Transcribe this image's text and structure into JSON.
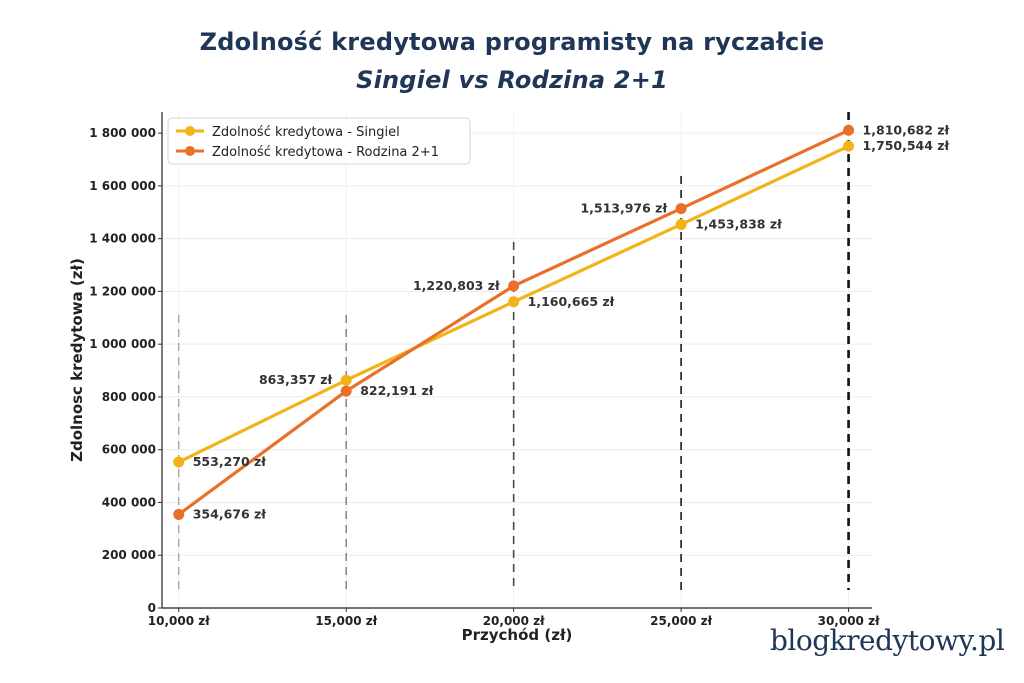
{
  "title_line1": "Zdolność kredytowa programisty na ryczałcie",
  "title_line2": "Singiel vs Rodzina 2+1",
  "brand": "blogkredytowy.pl",
  "colors": {
    "singiel": "#f2b318",
    "rodzina": "#e8702a",
    "title": "#1f3657"
  },
  "chart_data": {
    "type": "line",
    "xlabel": "Przychód (zł)",
    "ylabel": "Zdolnosc kredytowa (zł)",
    "x": [
      10000,
      15000,
      20000,
      25000,
      30000
    ],
    "x_tick_labels": [
      "10,000 zł",
      "15,000 zł",
      "20,000 zł",
      "25,000 zł",
      "30,000 zł"
    ],
    "ylim": [
      0,
      1880000
    ],
    "y_ticks": [
      0,
      200000,
      400000,
      600000,
      800000,
      1000000,
      1200000,
      1400000,
      1600000,
      1800000
    ],
    "y_tick_labels": [
      "0",
      "200 000",
      "400 000",
      "600 000",
      "800 000",
      "1 000 000",
      "1 200 000",
      "1 400 000",
      "1 600 000",
      "1 800 000"
    ],
    "grid": true,
    "legend_position": "top-left",
    "series": [
      {
        "name": "Zdolność kredytowa - Singiel",
        "values": [
          553270,
          863357,
          1160665,
          1453838,
          1750544
        ],
        "labels": [
          "553,270 zł",
          "863,357 zł",
          "1,160,665 zł",
          "1,453,838 zł",
          "1,750,544 zł"
        ]
      },
      {
        "name": "Zdolność kredytowa - Rodzina 2+1",
        "values": [
          354676,
          822191,
          1220803,
          1513976,
          1810682
        ],
        "labels": [
          "354,676 zł",
          "822,191 zł",
          "1,220,803 zł",
          "1,513,976 zł",
          "1,810,682 zł"
        ]
      }
    ]
  }
}
